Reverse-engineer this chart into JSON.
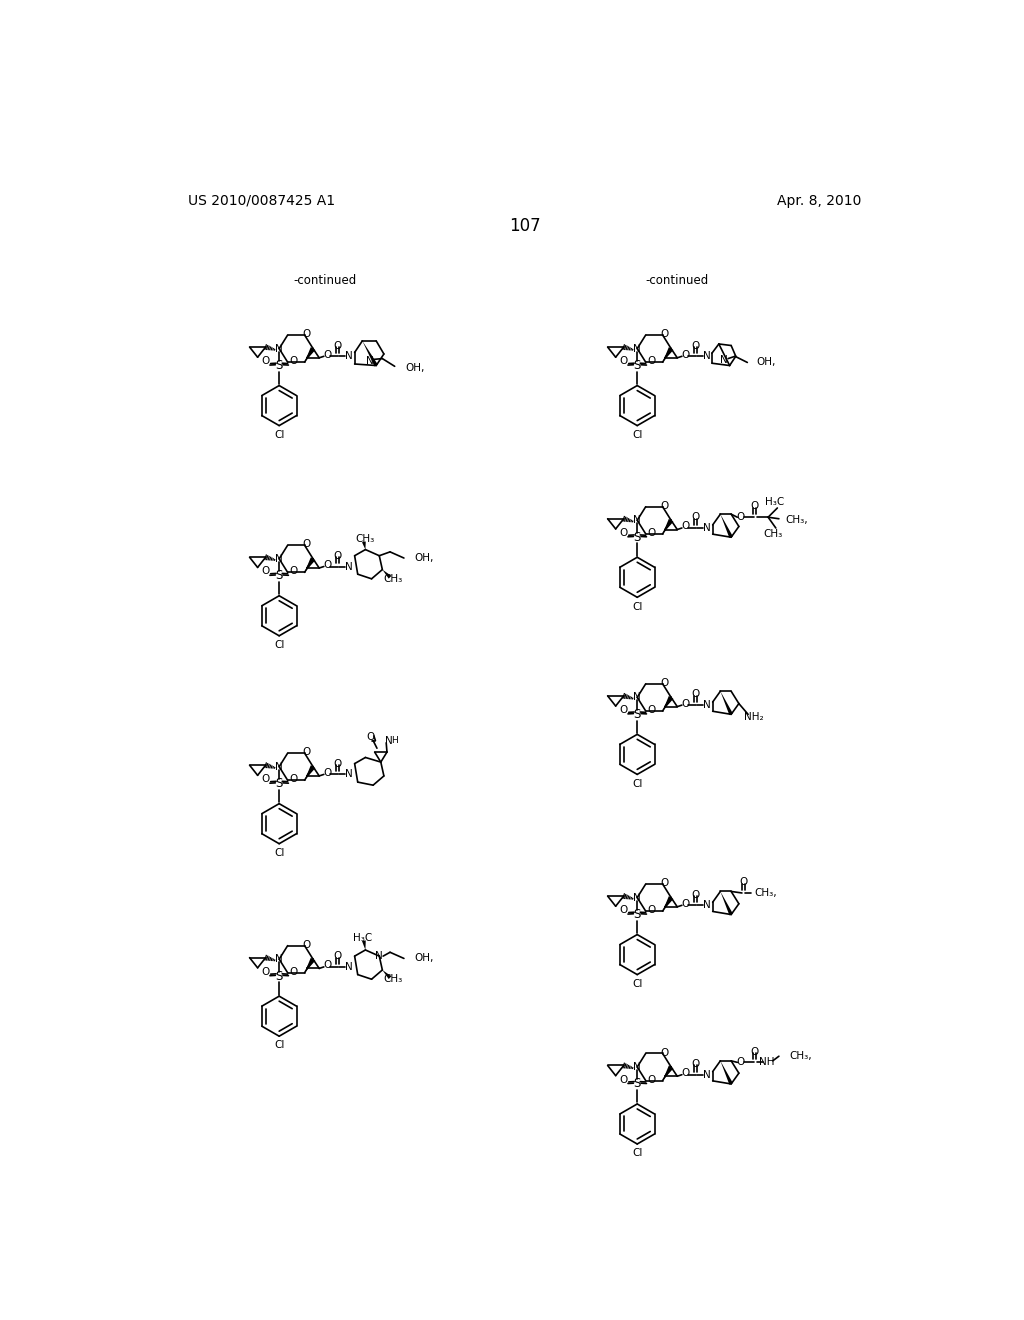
{
  "page_header_left": "US 2010/0087425 A1",
  "page_header_right": "Apr. 8, 2010",
  "page_number": "107",
  "continued_label_1": "-continued",
  "continued_label_2": "-continued",
  "background_color": "#ffffff",
  "text_color": "#000000",
  "line_color": "#000000",
  "line_width": 1.2,
  "font_size_header": 10,
  "font_size_page_num": 12,
  "font_size_atom": 7.5,
  "font_size_continued": 8.5,
  "structures": [
    {
      "col": 0,
      "row": 0
    },
    {
      "col": 1,
      "row": 0
    },
    {
      "col": 0,
      "row": 1
    },
    {
      "col": 1,
      "row": 1
    },
    {
      "col": 0,
      "row": 2
    },
    {
      "col": 1,
      "row": 2
    },
    {
      "col": 0,
      "row": 3
    },
    {
      "col": 1,
      "row": 3
    }
  ]
}
